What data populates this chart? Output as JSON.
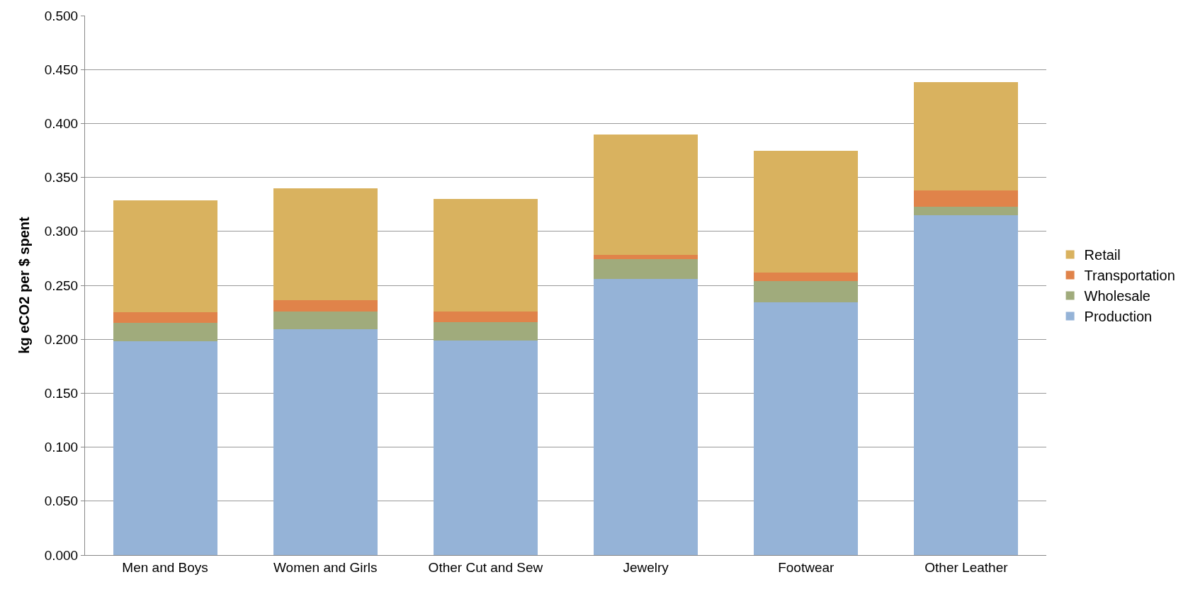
{
  "chart_data": {
    "type": "bar",
    "stacked": true,
    "ylabel": "kg eCO2 per $ spent",
    "categories": [
      "Men and Boys",
      "Women and Girls",
      "Other Cut and Sew",
      "Jewelry",
      "Footwear",
      "Other Leather"
    ],
    "series": [
      {
        "name": "Production",
        "color": "#95b3d7",
        "values": [
          0.198,
          0.209,
          0.199,
          0.256,
          0.234,
          0.315
        ]
      },
      {
        "name": "Wholesale",
        "color": "#a0ab7c",
        "values": [
          0.017,
          0.017,
          0.017,
          0.018,
          0.02,
          0.008
        ]
      },
      {
        "name": "Transportation",
        "color": "#e0834a",
        "values": [
          0.01,
          0.01,
          0.01,
          0.004,
          0.008,
          0.015
        ]
      },
      {
        "name": "Retail",
        "color": "#d9b25f",
        "values": [
          0.104,
          0.104,
          0.104,
          0.112,
          0.113,
          0.1
        ]
      }
    ],
    "ylim": [
      0,
      0.5
    ],
    "yticks": [
      {
        "value": 0,
        "label": "0.000"
      },
      {
        "value": 0.05,
        "label": "0.050"
      },
      {
        "value": 0.1,
        "label": "0.100"
      },
      {
        "value": 0.15,
        "label": "0.150"
      },
      {
        "value": 0.2,
        "label": "0.200"
      },
      {
        "value": 0.25,
        "label": "0.250"
      },
      {
        "value": 0.3,
        "label": "0.300"
      },
      {
        "value": 0.35,
        "label": "0.350"
      },
      {
        "value": 0.4,
        "label": "0.400"
      },
      {
        "value": 0.45,
        "label": "0.450"
      },
      {
        "value": 0.5,
        "label": "0.500"
      }
    ],
    "grid": "y",
    "legend": "right"
  }
}
